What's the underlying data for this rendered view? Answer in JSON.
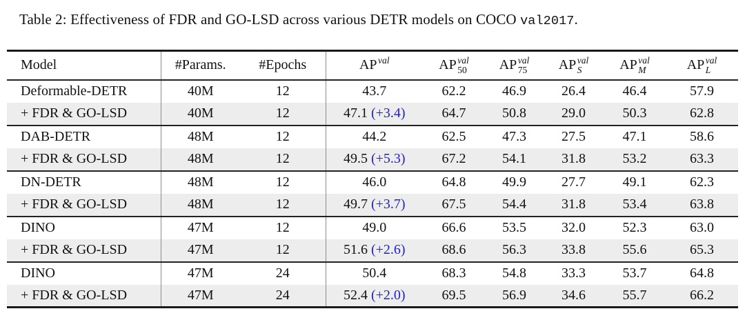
{
  "title": {
    "prefix": "Table 2: Effectiveness of FDR and GO-LSD across various DETR models on COCO ",
    "mono": "val2017",
    "suffix": "."
  },
  "table": {
    "headers": {
      "model": "Model",
      "params": "#Params.",
      "epochs": "#Epochs"
    },
    "ap_headers": [
      {
        "base": "AP",
        "sup": "val",
        "sub": ""
      },
      {
        "base": "AP",
        "sup": "val",
        "sub": "50"
      },
      {
        "base": "AP",
        "sup": "val",
        "sub": "75"
      },
      {
        "base": "AP",
        "sup": "val",
        "sub": "S"
      },
      {
        "base": "AP",
        "sup": "val",
        "sub": "M"
      },
      {
        "base": "AP",
        "sup": "val",
        "sub": "L"
      }
    ],
    "groups": [
      {
        "rows": [
          {
            "model": "Deformable-DETR",
            "params": "40M",
            "epochs": "12",
            "ap": "43.7",
            "delta": "",
            "ap50": "62.2",
            "ap75": "46.9",
            "aps": "26.4",
            "apm": "46.4",
            "apl": "57.9",
            "shaded": false
          },
          {
            "model": "+ FDR & GO-LSD",
            "params": "40M",
            "epochs": "12",
            "ap": "47.1",
            "delta": "(+3.4)",
            "ap50": "64.7",
            "ap75": "50.8",
            "aps": "29.0",
            "apm": "50.3",
            "apl": "62.8",
            "shaded": true
          }
        ]
      },
      {
        "rows": [
          {
            "model": "DAB-DETR",
            "params": "48M",
            "epochs": "12",
            "ap": "44.2",
            "delta": "",
            "ap50": "62.5",
            "ap75": "47.3",
            "aps": "27.5",
            "apm": "47.1",
            "apl": "58.6",
            "shaded": false
          },
          {
            "model": "+ FDR & GO-LSD",
            "params": "48M",
            "epochs": "12",
            "ap": "49.5",
            "delta": "(+5.3)",
            "ap50": "67.2",
            "ap75": "54.1",
            "aps": "31.8",
            "apm": "53.2",
            "apl": "63.3",
            "shaded": true
          }
        ]
      },
      {
        "rows": [
          {
            "model": "DN-DETR",
            "params": "48M",
            "epochs": "12",
            "ap": "46.0",
            "delta": "",
            "ap50": "64.8",
            "ap75": "49.9",
            "aps": "27.7",
            "apm": "49.1",
            "apl": "62.3",
            "shaded": false
          },
          {
            "model": "+ FDR & GO-LSD",
            "params": "48M",
            "epochs": "12",
            "ap": "49.7",
            "delta": "(+3.7)",
            "ap50": "67.5",
            "ap75": "54.4",
            "aps": "31.8",
            "apm": "53.4",
            "apl": "63.8",
            "shaded": true
          }
        ]
      },
      {
        "rows": [
          {
            "model": "DINO",
            "params": "47M",
            "epochs": "12",
            "ap": "49.0",
            "delta": "",
            "ap50": "66.6",
            "ap75": "53.5",
            "aps": "32.0",
            "apm": "52.3",
            "apl": "63.0",
            "shaded": false
          },
          {
            "model": "+ FDR & GO-LSD",
            "params": "47M",
            "epochs": "12",
            "ap": "51.6",
            "delta": "(+2.6)",
            "ap50": "68.6",
            "ap75": "56.3",
            "aps": "33.8",
            "apm": "55.6",
            "apl": "65.3",
            "shaded": true
          }
        ]
      },
      {
        "rows": [
          {
            "model": "DINO",
            "params": "47M",
            "epochs": "24",
            "ap": "50.4",
            "delta": "",
            "ap50": "68.3",
            "ap75": "54.8",
            "aps": "33.3",
            "apm": "53.7",
            "apl": "64.8",
            "shaded": false
          },
          {
            "model": "+ FDR & GO-LSD",
            "params": "47M",
            "epochs": "24",
            "ap": "52.4",
            "delta": "(+2.0)",
            "ap50": "69.5",
            "ap75": "56.9",
            "aps": "34.6",
            "apm": "55.7",
            "apl": "66.2",
            "shaded": true
          }
        ]
      }
    ],
    "colors": {
      "delta_blue": "#2222cc",
      "shaded_row": "#ededed",
      "rule_dark": "#1a1a1a",
      "rule_gray": "#8a8a8a"
    }
  }
}
